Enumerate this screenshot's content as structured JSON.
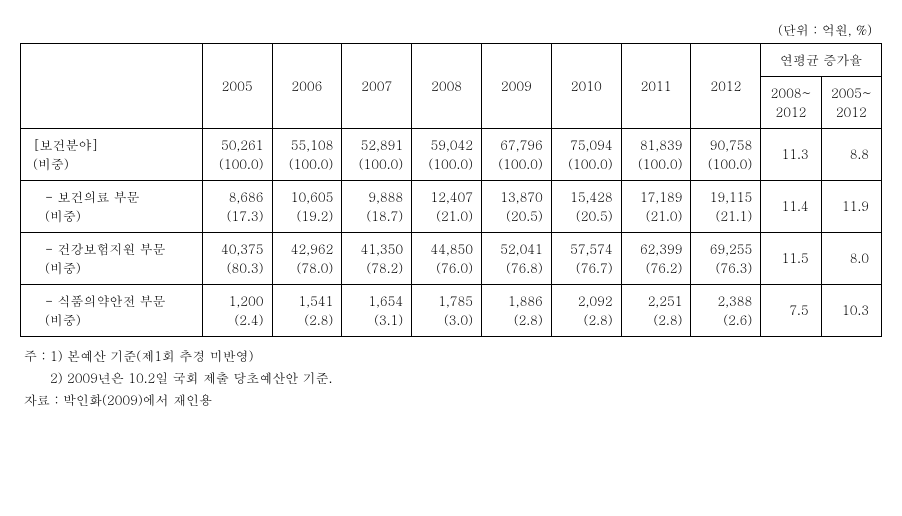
{
  "unit_label": "(단위 : 억원, %)",
  "headers": {
    "years": [
      "2005",
      "2006",
      "2007",
      "2008",
      "2009",
      "2010",
      "2011",
      "2012"
    ],
    "growth_title": "연평균 증가율",
    "growth_cols": [
      "2008~\n2012",
      "2005~\n2012"
    ]
  },
  "rows": [
    {
      "label": "[보건분야]\n(비중)",
      "indent": false,
      "values": [
        "50,261\n(100.0)",
        "55,108\n(100.0)",
        "52,891\n(100.0)",
        "59,042\n(100.0)",
        "67,796\n(100.0)",
        "75,094\n(100.0)",
        "81,839\n(100.0)",
        "90,758\n(100.0)"
      ],
      "rates": [
        "11.3",
        "8.8"
      ]
    },
    {
      "label": "- 보건의료 부문\n(비중)",
      "indent": true,
      "values": [
        "8,686\n(17.3)",
        "10,605\n(19.2)",
        "9,888\n(18.7)",
        "12,407\n(21.0)",
        "13,870\n(20.5)",
        "15,428\n(20.5)",
        "17,189\n(21.0)",
        "19,115\n(21.1)"
      ],
      "rates": [
        "11.4",
        "11.9"
      ]
    },
    {
      "label": "- 건강보험지원 부문\n(비중)",
      "indent": true,
      "values": [
        "40,375\n(80.3)",
        "42,962\n(78.0)",
        "41,350\n(78.2)",
        "44,850\n(76.0)",
        "52,041\n(76.8)",
        "57,574\n(76.7)",
        "62,399\n(76.2)",
        "69,255\n(76.3)"
      ],
      "rates": [
        "11.5",
        "8.0"
      ]
    },
    {
      "label": "- 식품의약안전 부문\n(비중)",
      "indent": true,
      "values": [
        "1,200\n(2.4)",
        "1,541\n(2.8)",
        "1,654\n(3.1)",
        "1,785\n(3.0)",
        "1,886\n(2.8)",
        "2,092\n(2.8)",
        "2,251\n(2.8)",
        "2,388\n(2.6)"
      ],
      "rates": [
        "7.5",
        "10.3"
      ]
    }
  ],
  "notes": {
    "line1": "주 : 1) 본예산 기준(제1회 추경 미반영)",
    "line2": "      2) 2009년은 10.2일 국회 제출 당초예산안 기준.",
    "line3": "자료 : 박인화(2009)에서 재인용"
  }
}
